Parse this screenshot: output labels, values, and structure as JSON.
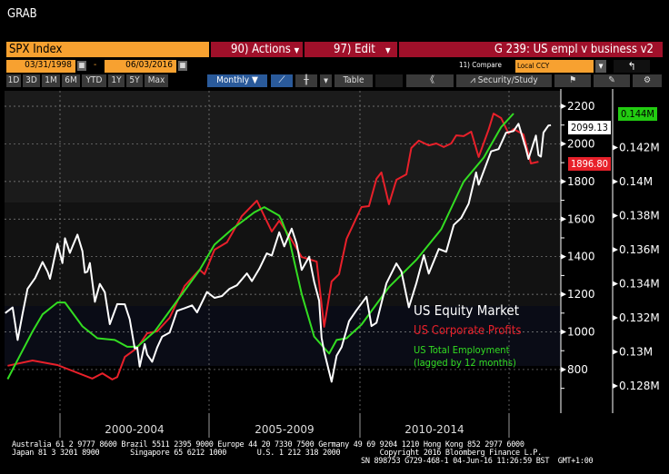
{
  "window": {
    "title": "GRAB"
  },
  "header": {
    "security": "SPX Index",
    "actions": "90) Actions",
    "edit": "97) Edit",
    "chart_title": "G 239: US empl v business v2"
  },
  "dates": {
    "start": "03/31/1998",
    "separator": "-",
    "end": "06/03/2016",
    "compare_label": "11) Compare",
    "currency": "Local CCY"
  },
  "toolbar": {
    "ranges": [
      "1D",
      "3D",
      "1M",
      "6M",
      "YTD",
      "1Y",
      "5Y",
      "Max"
    ],
    "period": "Monthly ▼",
    "table": "Table",
    "collapse": "《",
    "security_study": "Security/Study"
  },
  "icons": {
    "calendar": "calendar-icon",
    "back": "back-arrow-icon",
    "line": "line-chart-icon",
    "bars": "bar-chart-icon",
    "flag": "flag-icon",
    "edit": "edit-icon",
    "settings": "gear-icon"
  },
  "footer": {
    "line1": "Australia 61 2 9777 8600 Brazil 5511 2395 9000 Europe 44 20 7330 7500 Germany 49 69 9204 1210 Hong Kong 852 2977 6000",
    "line2": "Japan 81 3 3201 8900       Singapore 65 6212 1000       U.S. 1 212 318 2000         Copyright 2016 Bloomberg Finance L.P.",
    "line3": "SN 898753 G729-468-1 04-Jun-16 11:26:59 BST  GMT+1:00"
  },
  "colors": {
    "equity": "#ffffff",
    "profits": "#e8202a",
    "employment": "#33dd22",
    "orange": "#f7a130",
    "red": "#a0102a"
  },
  "chart_data": {
    "type": "line",
    "x_period_labels": [
      "2000-2004",
      "2005-2009",
      "2010-2014"
    ],
    "left_axis": {
      "ticks": [
        "2200",
        "2000",
        "1800",
        "1600",
        "1400",
        "1200",
        "1000",
        "800"
      ],
      "ylim": [
        700,
        2300
      ]
    },
    "right_axis": {
      "ticks": [
        "0.142M",
        "0.14M",
        "0.138M",
        "0.136M",
        "0.134M",
        "0.132M",
        "0.13M",
        "0.128M"
      ],
      "ylim": [
        0.1272,
        0.1456
      ]
    },
    "grid": true,
    "legend": {
      "placement": "bottom-right",
      "entries": [
        "US Equity Market",
        "US Corporate Profits",
        "US Total Employment",
        "(lagged by 12 months)"
      ]
    },
    "last_values": {
      "equity": "2099.13",
      "profits": "1896.80",
      "employment": "0.144M"
    },
    "series": [
      {
        "name": "US Equity Market",
        "axis": "left",
        "points": [
          [
            "1998-03",
            1100
          ],
          [
            "1998-06",
            1130
          ],
          [
            "1998-08",
            957
          ],
          [
            "1998-10",
            1098
          ],
          [
            "1998-12",
            1229
          ],
          [
            "1999-03",
            1286
          ],
          [
            "1999-06",
            1372
          ],
          [
            "1999-08",
            1320
          ],
          [
            "1999-09",
            1282
          ],
          [
            "1999-12",
            1469
          ],
          [
            "2000-02",
            1366
          ],
          [
            "2000-03",
            1498
          ],
          [
            "2000-05",
            1420
          ],
          [
            "2000-06",
            1454
          ],
          [
            "2000-08",
            1517
          ],
          [
            "2000-10",
            1429
          ],
          [
            "2000-11",
            1315
          ],
          [
            "2000-12",
            1320
          ],
          [
            "2001-01",
            1366
          ],
          [
            "2001-03",
            1160
          ],
          [
            "2001-05",
            1255
          ],
          [
            "2001-07",
            1211
          ],
          [
            "2001-09",
            1041
          ],
          [
            "2001-12",
            1148
          ],
          [
            "2002-03",
            1147
          ],
          [
            "2002-05",
            1067
          ],
          [
            "2002-07",
            912
          ],
          [
            "2002-08",
            916
          ],
          [
            "2002-09",
            815
          ],
          [
            "2002-11",
            936
          ],
          [
            "2002-12",
            880
          ],
          [
            "2003-02",
            841
          ],
          [
            "2003-04",
            917
          ],
          [
            "2003-06",
            975
          ],
          [
            "2003-09",
            996
          ],
          [
            "2003-12",
            1112
          ],
          [
            "2004-03",
            1126
          ],
          [
            "2004-06",
            1141
          ],
          [
            "2004-08",
            1104
          ],
          [
            "2004-12",
            1212
          ],
          [
            "2005-03",
            1181
          ],
          [
            "2005-06",
            1191
          ],
          [
            "2005-09",
            1229
          ],
          [
            "2005-12",
            1248
          ],
          [
            "2006-04",
            1311
          ],
          [
            "2006-06",
            1270
          ],
          [
            "2006-09",
            1336
          ],
          [
            "2006-12",
            1418
          ],
          [
            "2007-02",
            1406
          ],
          [
            "2007-05",
            1530
          ],
          [
            "2007-07",
            1455
          ],
          [
            "2007-10",
            1549
          ],
          [
            "2007-12",
            1468
          ],
          [
            "2008-02",
            1330
          ],
          [
            "2008-05",
            1400
          ],
          [
            "2008-07",
            1267
          ],
          [
            "2008-09",
            1166
          ],
          [
            "2008-10",
            968
          ],
          [
            "2008-11",
            896
          ],
          [
            "2009-02",
            735
          ],
          [
            "2009-04",
            873
          ],
          [
            "2009-06",
            919
          ],
          [
            "2009-09",
            1057
          ],
          [
            "2009-12",
            1115
          ],
          [
            "2010-04",
            1187
          ],
          [
            "2010-06",
            1031
          ],
          [
            "2010-08",
            1049
          ],
          [
            "2010-12",
            1258
          ],
          [
            "2011-04",
            1364
          ],
          [
            "2011-06",
            1321
          ],
          [
            "2011-09",
            1131
          ],
          [
            "2011-12",
            1258
          ],
          [
            "2012-03",
            1408
          ],
          [
            "2012-05",
            1310
          ],
          [
            "2012-09",
            1441
          ],
          [
            "2012-12",
            1426
          ],
          [
            "2013-03",
            1569
          ],
          [
            "2013-06",
            1606
          ],
          [
            "2013-09",
            1682
          ],
          [
            "2013-12",
            1848
          ],
          [
            "2014-01",
            1783
          ],
          [
            "2014-06",
            1960
          ],
          [
            "2014-09",
            1972
          ],
          [
            "2014-12",
            2059
          ],
          [
            "2015-03",
            2068
          ],
          [
            "2015-05",
            2107
          ],
          [
            "2015-08",
            1972
          ],
          [
            "2015-09",
            1920
          ],
          [
            "2015-12",
            2044
          ],
          [
            "2016-01",
            1940
          ],
          [
            "2016-02",
            1932
          ],
          [
            "2016-03",
            2060
          ],
          [
            "2016-05",
            2097
          ],
          [
            "2016-06",
            2099
          ]
        ]
      },
      {
        "name": "US Corporate Profits",
        "axis": "left",
        "points": [
          [
            "1998-04",
            820
          ],
          [
            "1999-02",
            848
          ],
          [
            "1999-12",
            824
          ],
          [
            "2001-02",
            752
          ],
          [
            "2001-06",
            780
          ],
          [
            "2001-10",
            747
          ],
          [
            "2001-12",
            760
          ],
          [
            "2002-03",
            867
          ],
          [
            "2002-08",
            915
          ],
          [
            "2002-12",
            993
          ],
          [
            "2003-04",
            1003
          ],
          [
            "2003-09",
            1075
          ],
          [
            "2004-03",
            1244
          ],
          [
            "2004-09",
            1331
          ],
          [
            "2004-11",
            1307
          ],
          [
            "2005-03",
            1437
          ],
          [
            "2005-08",
            1476
          ],
          [
            "2006-02",
            1616
          ],
          [
            "2006-08",
            1698
          ],
          [
            "2007-02",
            1534
          ],
          [
            "2007-05",
            1591
          ],
          [
            "2007-09",
            1510
          ],
          [
            "2008-02",
            1398
          ],
          [
            "2008-08",
            1374
          ],
          [
            "2008-11",
            1027
          ],
          [
            "2009-02",
            1268
          ],
          [
            "2009-05",
            1307
          ],
          [
            "2009-08",
            1495
          ],
          [
            "2010-02",
            1664
          ],
          [
            "2010-05",
            1669
          ],
          [
            "2010-08",
            1814
          ],
          [
            "2010-10",
            1848
          ],
          [
            "2011-01",
            1679
          ],
          [
            "2011-04",
            1809
          ],
          [
            "2011-08",
            1838
          ],
          [
            "2011-10",
            1978
          ],
          [
            "2012-01",
            2017
          ],
          [
            "2012-05",
            1992
          ],
          [
            "2012-08",
            2002
          ],
          [
            "2012-11",
            1983
          ],
          [
            "2013-02",
            2002
          ],
          [
            "2013-04",
            2045
          ],
          [
            "2013-07",
            2041
          ],
          [
            "2013-10",
            2065
          ],
          [
            "2014-01",
            1930
          ],
          [
            "2014-05",
            2075
          ],
          [
            "2014-07",
            2161
          ],
          [
            "2014-10",
            2137
          ],
          [
            "2015-01",
            2055
          ],
          [
            "2015-03",
            2079
          ],
          [
            "2015-07",
            2050
          ],
          [
            "2015-10",
            1896
          ],
          [
            "2016-01",
            1905
          ]
        ]
      },
      {
        "name": "US Total Employment",
        "axis": "right",
        "points": [
          [
            "1998-04",
            0.1284
          ],
          [
            "1998-09",
            0.1298
          ],
          [
            "1999-02",
            0.1312
          ],
          [
            "1999-06",
            0.1322
          ],
          [
            "1999-12",
            0.1329
          ],
          [
            "2000-03",
            0.1329
          ],
          [
            "2000-10",
            0.1315
          ],
          [
            "2001-04",
            0.1308
          ],
          [
            "2001-11",
            0.1307
          ],
          [
            "2002-04",
            0.1303
          ],
          [
            "2002-08",
            0.1303
          ],
          [
            "2003-03",
            0.1312
          ],
          [
            "2003-09",
            0.1324
          ],
          [
            "2004-03",
            0.1336
          ],
          [
            "2004-09",
            0.1348
          ],
          [
            "2005-03",
            0.1363
          ],
          [
            "2005-10",
            0.1372
          ],
          [
            "2006-07",
            0.1382
          ],
          [
            "2006-11",
            0.1385
          ],
          [
            "2007-05",
            0.138
          ],
          [
            "2007-06",
            0.1377
          ],
          [
            "2007-09",
            0.1366
          ],
          [
            "2008-02",
            0.1334
          ],
          [
            "2008-07",
            0.1309
          ],
          [
            "2009-01",
            0.1299
          ],
          [
            "2009-04",
            0.1307
          ],
          [
            "2009-08",
            0.1308
          ],
          [
            "2010-02",
            0.1316
          ],
          [
            "2011-01",
            0.1338
          ],
          [
            "2011-12",
            0.1354
          ],
          [
            "2012-10",
            0.1372
          ],
          [
            "2013-07",
            0.14
          ],
          [
            "2014-03",
            0.1414
          ],
          [
            "2014-10",
            0.1432
          ],
          [
            "2015-03",
            0.144
          ]
        ]
      }
    ]
  }
}
